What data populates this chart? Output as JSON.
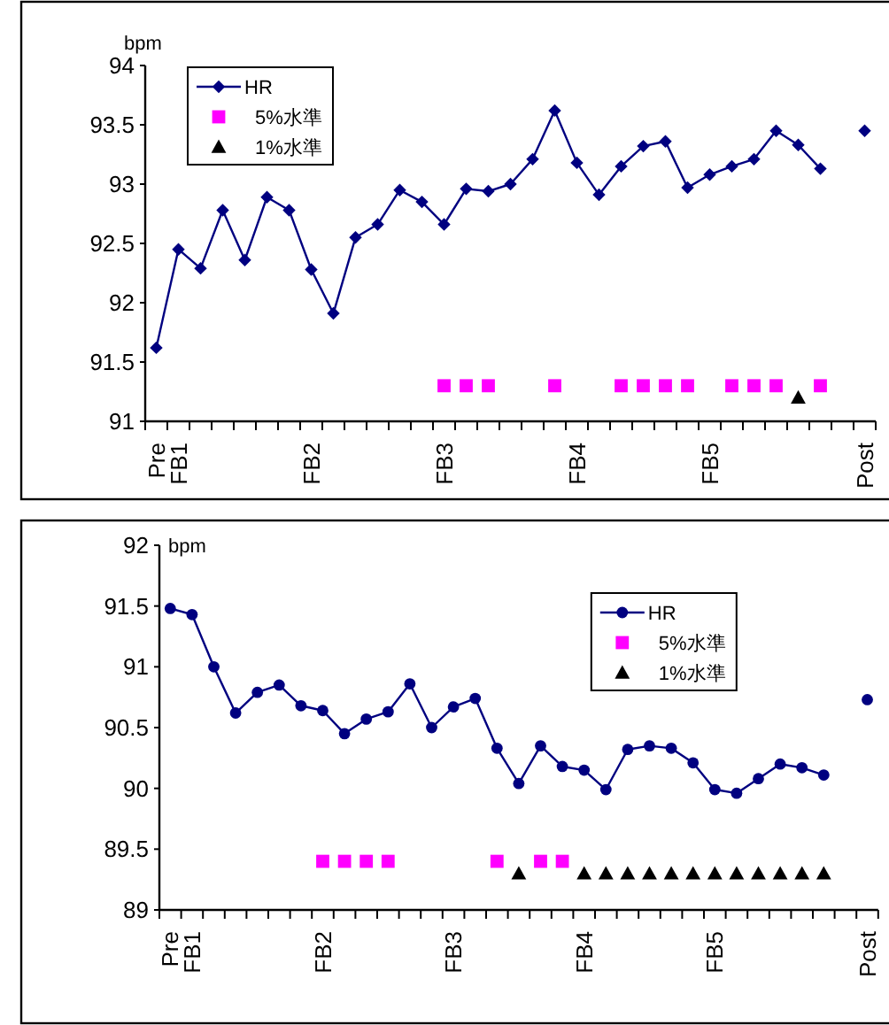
{
  "chart_data": [
    {
      "type": "line",
      "ylabel": "bpm",
      "ylim": [
        91,
        94
      ],
      "yticks": [
        91,
        91.5,
        92,
        92.5,
        93,
        93.5,
        94
      ],
      "legend": "top left",
      "grid": false,
      "categories": [
        "Pre",
        "FB1",
        null,
        null,
        null,
        null,
        null,
        "FB2",
        null,
        null,
        null,
        null,
        null,
        "FB3",
        null,
        null,
        null,
        null,
        null,
        "FB4",
        null,
        null,
        null,
        null,
        null,
        "FB5",
        null,
        null,
        null,
        null,
        null,
        null,
        "Post"
      ],
      "series": [
        {
          "name": "HR",
          "color": "#000080",
          "marker": "diamond",
          "values": [
            91.62,
            92.45,
            92.29,
            92.78,
            92.36,
            92.89,
            92.78,
            92.28,
            91.91,
            92.55,
            92.66,
            92.95,
            92.85,
            92.66,
            92.96,
            92.94,
            93.0,
            93.21,
            93.62,
            93.18,
            92.91,
            93.15,
            93.32,
            93.36,
            92.97,
            93.08,
            93.15,
            93.21,
            93.45,
            93.33,
            93.13,
            null,
            93.45
          ]
        },
        {
          "name": "5%水準",
          "type": "scatter",
          "color": "#ff00ff",
          "marker": "square",
          "values": [
            null,
            null,
            null,
            null,
            null,
            null,
            null,
            null,
            null,
            null,
            null,
            null,
            null,
            91.3,
            91.3,
            91.3,
            null,
            null,
            91.3,
            null,
            null,
            91.3,
            91.3,
            91.3,
            91.3,
            null,
            91.3,
            91.3,
            91.3,
            null,
            91.3,
            null,
            null
          ]
        },
        {
          "name": "1%水準",
          "type": "scatter",
          "color": "#000000",
          "marker": "triangle",
          "values": [
            null,
            null,
            null,
            null,
            null,
            null,
            null,
            null,
            null,
            null,
            null,
            null,
            null,
            null,
            null,
            null,
            null,
            null,
            null,
            null,
            null,
            null,
            null,
            null,
            null,
            null,
            null,
            null,
            null,
            91.2,
            null,
            null,
            null
          ]
        }
      ]
    },
    {
      "type": "line",
      "ylabel": "bpm",
      "ylim": [
        89,
        92
      ],
      "yticks": [
        89,
        89.5,
        90,
        90.5,
        91,
        91.5,
        92
      ],
      "legend": "top right",
      "grid": false,
      "categories": [
        "Pre",
        "FB1",
        null,
        null,
        null,
        null,
        null,
        "FB2",
        null,
        null,
        null,
        null,
        null,
        "FB3",
        null,
        null,
        null,
        null,
        null,
        "FB4",
        null,
        null,
        null,
        null,
        null,
        "FB5",
        null,
        null,
        null,
        null,
        null,
        null,
        "Post"
      ],
      "series": [
        {
          "name": "HR",
          "color": "#000080",
          "marker": "circle",
          "values": [
            91.48,
            91.43,
            91.0,
            90.62,
            90.79,
            90.85,
            90.68,
            90.64,
            90.45,
            90.57,
            90.63,
            90.86,
            90.5,
            90.67,
            90.74,
            90.33,
            90.04,
            90.35,
            90.18,
            90.15,
            89.99,
            90.32,
            90.35,
            90.33,
            90.21,
            89.99,
            89.96,
            90.08,
            90.2,
            90.17,
            90.11,
            null,
            90.73
          ]
        },
        {
          "name": "5%水準",
          "type": "scatter",
          "color": "#ff00ff",
          "marker": "square",
          "values": [
            null,
            null,
            null,
            null,
            null,
            null,
            null,
            89.4,
            89.4,
            89.4,
            89.4,
            null,
            null,
            null,
            null,
            89.4,
            null,
            89.4,
            89.4,
            null,
            null,
            null,
            null,
            null,
            null,
            null,
            null,
            null,
            null,
            null,
            null,
            null,
            null
          ]
        },
        {
          "name": "1%水準",
          "type": "scatter",
          "color": "#000000",
          "marker": "triangle",
          "values": [
            null,
            null,
            null,
            null,
            null,
            null,
            null,
            null,
            null,
            null,
            null,
            null,
            null,
            null,
            null,
            null,
            89.3,
            null,
            null,
            89.3,
            89.3,
            89.3,
            89.3,
            89.3,
            89.3,
            89.3,
            89.3,
            89.3,
            89.3,
            89.3,
            89.3,
            null,
            null
          ]
        }
      ]
    }
  ]
}
